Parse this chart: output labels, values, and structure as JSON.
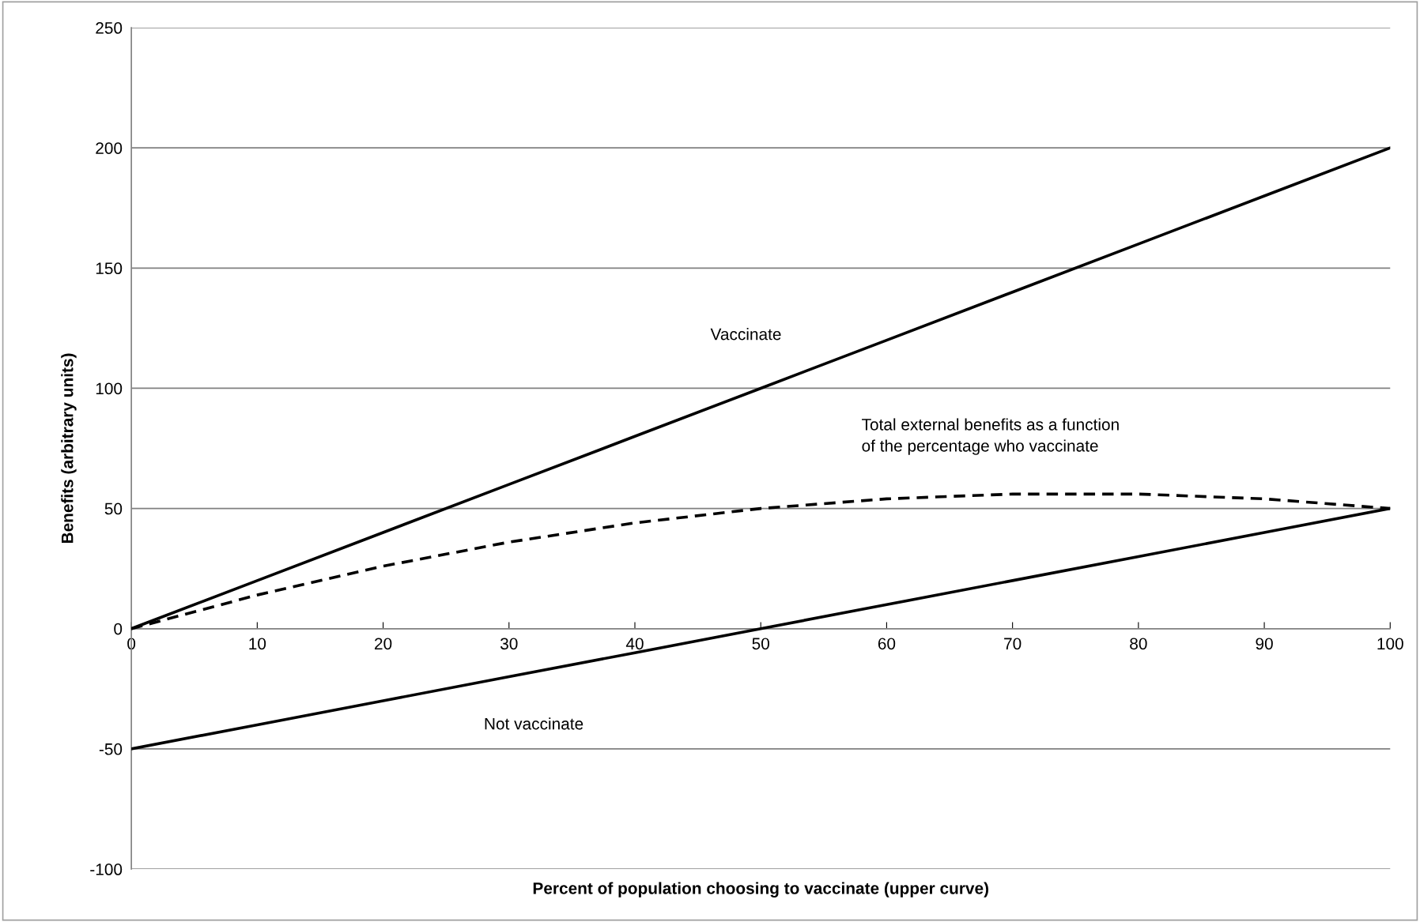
{
  "chart_data": {
    "type": "line",
    "xlabel": "Percent of population choosing to vaccinate (upper curve)",
    "ylabel": "Benefits (arbitrary units)",
    "x": [
      0,
      10,
      20,
      30,
      40,
      50,
      60,
      70,
      80,
      90,
      100
    ],
    "series": [
      {
        "name": "Vaccinate",
        "color": "#000000",
        "line_style": "solid",
        "values": [
          0,
          20,
          40,
          60,
          80,
          100,
          120,
          140,
          160,
          180,
          200
        ]
      },
      {
        "name": "Total external benefits as a function\nof the percentage who vaccinate",
        "color": "#000000",
        "line_style": "dashed",
        "values": [
          0,
          14,
          26,
          36,
          44,
          50,
          54,
          56,
          56,
          54,
          50
        ]
      },
      {
        "name": "Not vaccinate",
        "color": "#000000",
        "line_style": "solid",
        "values": [
          -50,
          -40,
          -30,
          -20,
          -10,
          0,
          10,
          20,
          30,
          40,
          50
        ]
      }
    ],
    "xlim": [
      0,
      100
    ],
    "xticks": [
      0,
      10,
      20,
      30,
      40,
      50,
      60,
      70,
      80,
      90,
      100
    ],
    "ylim": [
      -100,
      250
    ],
    "yticks": [
      -100,
      -50,
      0,
      50,
      100,
      150,
      200,
      250
    ],
    "grid": "y",
    "legend": false,
    "marker": "none"
  }
}
